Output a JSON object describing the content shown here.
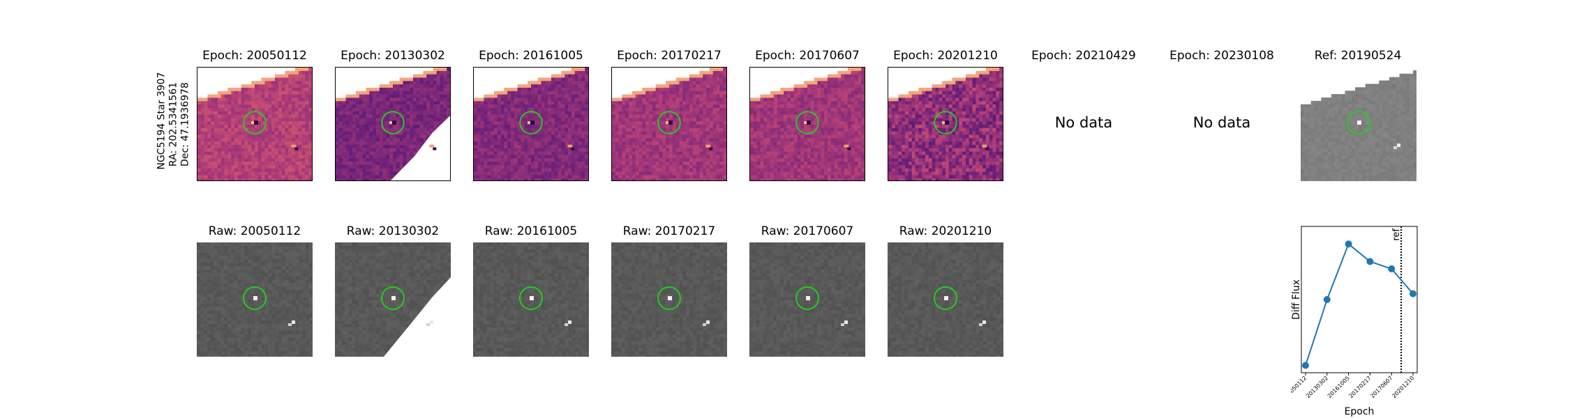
{
  "object": {
    "name": "NGC5194 Star 3907",
    "ra": "RA: 202.5341561",
    "dec": "Dec: 47.1936978"
  },
  "diff_panels": [
    {
      "title": "Epoch: 20050112",
      "has_data": true
    },
    {
      "title": "Epoch: 20130302",
      "has_data": true
    },
    {
      "title": "Epoch: 20161005",
      "has_data": true
    },
    {
      "title": "Epoch: 20170217",
      "has_data": true
    },
    {
      "title": "Epoch: 20170607",
      "has_data": true
    },
    {
      "title": "Epoch: 20201210",
      "has_data": true
    },
    {
      "title": "Epoch: 20210429",
      "has_data": false,
      "no_data_label": "No data"
    },
    {
      "title": "Epoch: 20230108",
      "has_data": false,
      "no_data_label": "No data"
    }
  ],
  "reference_panel": {
    "title": "Ref: 20190524"
  },
  "raw_panels": [
    {
      "title": "Raw: 20050112"
    },
    {
      "title": "Raw: 20130302"
    },
    {
      "title": "Raw: 20161005"
    },
    {
      "title": "Raw: 20170217"
    },
    {
      "title": "Raw: 20170607"
    },
    {
      "title": "Raw: 20201210"
    }
  ],
  "colors": {
    "aperture": "#22cc22",
    "line": "#1f77b4",
    "magma_dark": "#5a1e73",
    "magma_mid": "#b8467a",
    "magma_bright": "#f29566",
    "raw_background": "#5e5e5e"
  },
  "chart_data": {
    "type": "line",
    "categories": [
      "20050112",
      "20130302",
      "20161005",
      "20170217",
      "20170607",
      "20201210"
    ],
    "values": [
      0.05,
      0.5,
      0.88,
      0.76,
      0.71,
      0.54
    ],
    "ylim": [
      0,
      1
    ],
    "xlabel": "Epoch",
    "ylabel": "Diff Flux",
    "reference_line": {
      "position_between": [
        "20170607",
        "20201210"
      ],
      "fraction": 0.45,
      "label": "ref"
    },
    "yticks_visible": false
  }
}
